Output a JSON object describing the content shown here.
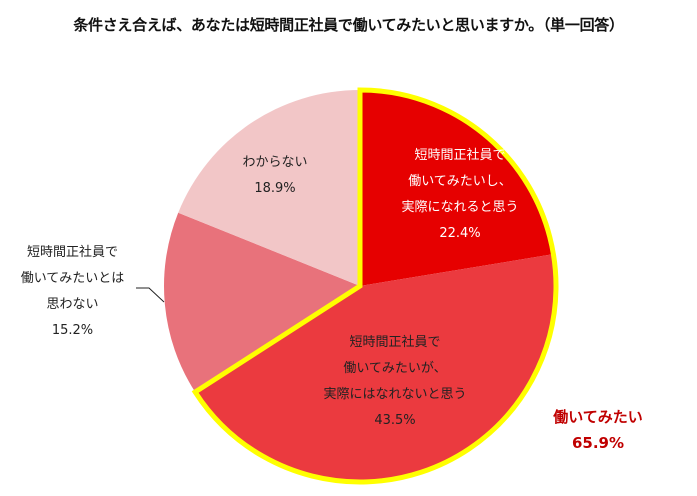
{
  "chart_data": {
    "type": "pie",
    "title": "条件さえ合えば、あなたは短時間正社員で働いてみたいと思いますか。（単一回答）",
    "start_angle": "12 o'clock, clockwise",
    "slices": [
      {
        "label": "短時間正社員で働いてみたいし、実際になれると思う",
        "lines": [
          "短時間正社員で",
          "働いてみたいし、",
          "実際になれると思う"
        ],
        "value": 22.4,
        "display": "22.4%",
        "color": "#e60000"
      },
      {
        "label": "短時間正社員で働いてみたいが、実際にはなれないと思う",
        "lines": [
          "短時間正社員で",
          "働いてみたいが、",
          "実際にはなれないと思う"
        ],
        "value": 43.5,
        "display": "43.5%",
        "color": "#eb3a3f"
      },
      {
        "label": "短時間正社員で働いてみたいとは思わない",
        "lines": [
          "短時間正社員で",
          "働いてみたいとは",
          "思わない"
        ],
        "value": 15.2,
        "display": "15.2%",
        "color": "#e8727b"
      },
      {
        "label": "わからない",
        "lines": [
          "わからない"
        ],
        "value": 18.9,
        "display": "18.9%",
        "color": "#f2c6c7"
      }
    ],
    "annotation": {
      "label": "働いてみたい",
      "value": 65.9,
      "display": "65.9%",
      "color": "#c00000",
      "highlight_border": "#ffff00"
    }
  }
}
